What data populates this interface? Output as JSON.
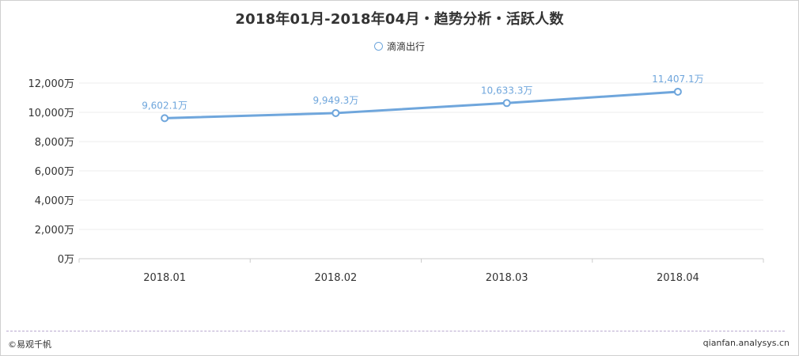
{
  "chart_data": {
    "type": "line",
    "title": "2018年01月-2018年04月・趋势分析・活跃人数",
    "categories": [
      "2018.01",
      "2018.02",
      "2018.03",
      "2018.04"
    ],
    "series": [
      {
        "name": "滴滴出行",
        "values": [
          9602.1,
          9949.3,
          10633.3,
          11407.1
        ],
        "data_labels": [
          "9,602.1万",
          "9,949.3万",
          "10,633.3万",
          "11,407.1万"
        ]
      }
    ],
    "ylim": [
      0,
      12000
    ],
    "yticks": [
      "0万",
      "2,000万",
      "4,000万",
      "6,000万",
      "8,000万",
      "10,000万",
      "12,000万"
    ],
    "grid": true,
    "legend": "top-center"
  },
  "colors": {
    "series": "#6fa6dc",
    "label": "#6fa6dc"
  },
  "footer": {
    "brand": "©易观千帆",
    "site": "qianfan.analysys.cn"
  }
}
